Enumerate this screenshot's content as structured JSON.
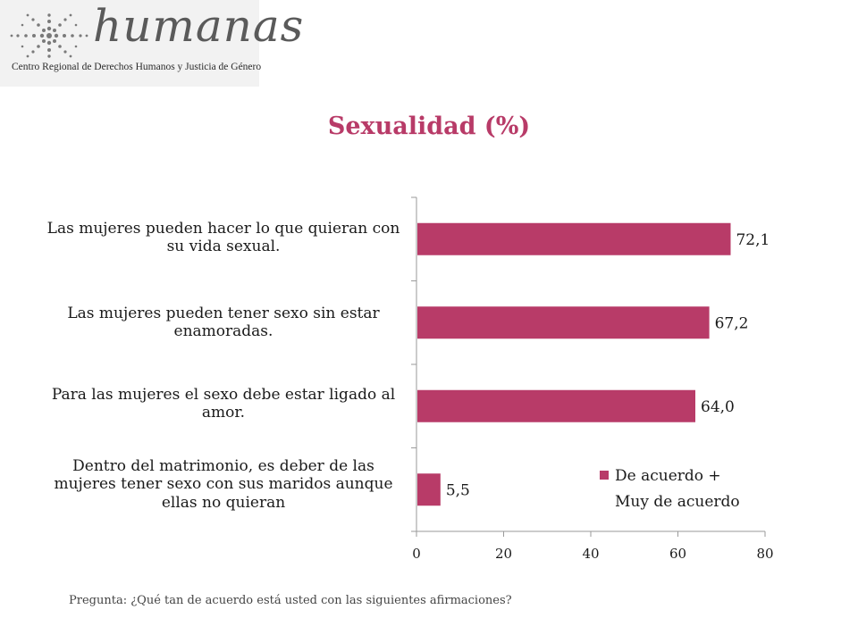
{
  "logo": {
    "wordmark": "humanas",
    "subtitle": "Centro Regional de Derechos Humanos y Justicia de Género",
    "icon": "star-dots-logo-icon"
  },
  "footnote": "Pregunta: ¿Qué tan de acuerdo está usted con las siguientes afirmaciones?",
  "colors": {
    "bar": "#b83b68",
    "title": "#b83b68"
  },
  "chart_data": {
    "type": "bar",
    "orientation": "horizontal",
    "title": "Sexualidad (%)",
    "categories": [
      "Las mujeres pueden hacer lo que quieran con su vida sexual.",
      "Las mujeres pueden tener sexo sin estar enamoradas.",
      "Para las mujeres el sexo debe estar ligado al amor.",
      "Dentro del matrimonio, es deber de las mujeres tener sexo con sus maridos aunque ellas no quieran"
    ],
    "series": [
      {
        "name": "De acuerdo + Muy de acuerdo",
        "values": [
          72.1,
          67.2,
          64.0,
          5.5
        ]
      }
    ],
    "value_labels": [
      "72,1",
      "67,2",
      "64,0",
      "5,5"
    ],
    "xlim": [
      0,
      80
    ],
    "xticks": [
      0,
      20,
      40,
      60,
      80
    ],
    "grid": false,
    "legend_position": "bottom-right"
  }
}
